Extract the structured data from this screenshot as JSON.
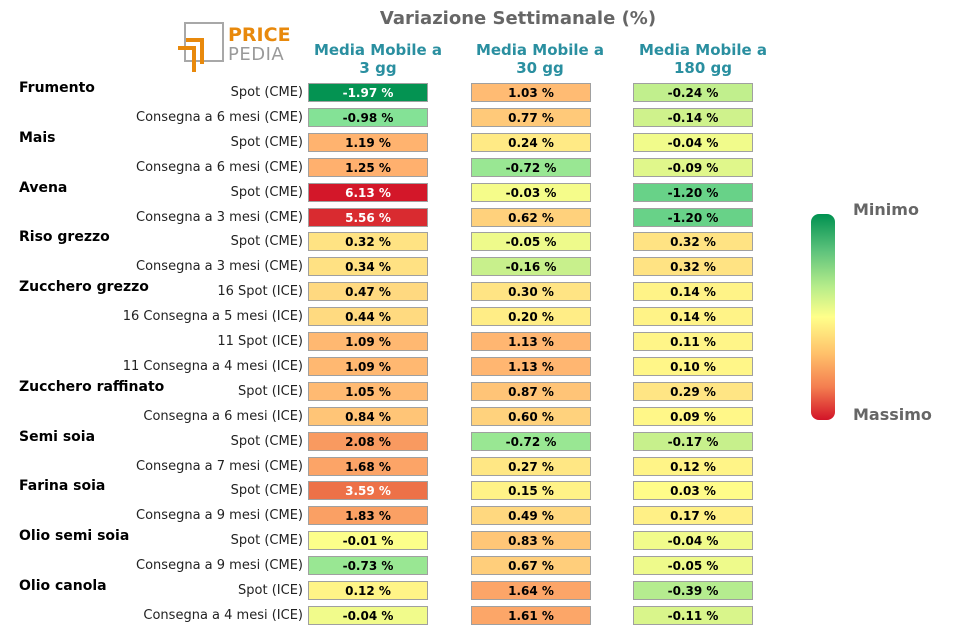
{
  "title": "Variazione Settimanale (%)",
  "logo": {
    "line1": "PRICE",
    "line2": "PEDIA"
  },
  "columns": [
    "Media Mobile a 3 gg",
    "Media Mobile a 30 gg",
    "Media Mobile a 180 gg"
  ],
  "legend": {
    "min_label": "Minimo",
    "max_label": "Massimo"
  },
  "colors": {
    "min": "#009150",
    "mid": "#ffff8a",
    "max": "#d21428",
    "header": "#2a8fa0"
  },
  "chart_data": {
    "type": "heatmap",
    "title": "Variazione Settimanale (%)",
    "columns": [
      "Media Mobile a 3 gg",
      "Media Mobile a 30 gg",
      "Media Mobile a 180 gg"
    ],
    "unit": "%",
    "groups": [
      {
        "name": "Frumento",
        "rows": [
          {
            "label": "Spot (CME)",
            "values": [
              -1.97,
              1.03,
              -0.24
            ]
          },
          {
            "label": "Consegna a 6 mesi (CME)",
            "values": [
              -0.98,
              0.77,
              -0.14
            ]
          }
        ]
      },
      {
        "name": "Mais",
        "rows": [
          {
            "label": "Spot (CME)",
            "values": [
              1.19,
              0.24,
              -0.04
            ]
          },
          {
            "label": "Consegna a 6 mesi (CME)",
            "values": [
              1.25,
              -0.72,
              -0.09
            ]
          }
        ]
      },
      {
        "name": "Avena",
        "rows": [
          {
            "label": "Spot (CME)",
            "values": [
              6.13,
              -0.03,
              -1.2
            ]
          },
          {
            "label": "Consegna a 3 mesi (CME)",
            "values": [
              5.56,
              0.62,
              -1.2
            ]
          }
        ]
      },
      {
        "name": "Riso grezzo",
        "rows": [
          {
            "label": "Spot (CME)",
            "values": [
              0.32,
              -0.05,
              0.32
            ]
          },
          {
            "label": "Consegna a 3 mesi (CME)",
            "values": [
              0.34,
              -0.16,
              0.32
            ]
          }
        ]
      },
      {
        "name": "Zucchero grezzo",
        "rows": [
          {
            "label": "16 Spot (ICE)",
            "values": [
              0.47,
              0.3,
              0.14
            ]
          },
          {
            "label": "16 Consegna a 5 mesi (ICE)",
            "values": [
              0.44,
              0.2,
              0.14
            ]
          },
          {
            "label": "11 Spot (ICE)",
            "values": [
              1.09,
              1.13,
              0.11
            ]
          },
          {
            "label": "11 Consegna a 4 mesi (ICE)",
            "values": [
              1.09,
              1.13,
              0.1
            ]
          }
        ]
      },
      {
        "name": "Zucchero raffinato",
        "rows": [
          {
            "label": "Spot (ICE)",
            "values": [
              1.05,
              0.87,
              0.29
            ]
          },
          {
            "label": "Consegna a 6 mesi (ICE)",
            "values": [
              0.84,
              0.6,
              0.09
            ]
          }
        ]
      },
      {
        "name": "Semi soia",
        "rows": [
          {
            "label": "Spot (CME)",
            "values": [
              2.08,
              -0.72,
              -0.17
            ]
          },
          {
            "label": "Consegna a 7 mesi (CME)",
            "values": [
              1.68,
              0.27,
              0.12
            ]
          }
        ]
      },
      {
        "name": "Farina soia",
        "rows": [
          {
            "label": "Spot (CME)",
            "values": [
              3.59,
              0.15,
              0.03
            ]
          },
          {
            "label": "Consegna a 9 mesi (CME)",
            "values": [
              1.83,
              0.49,
              0.17
            ]
          }
        ]
      },
      {
        "name": "Olio semi soia",
        "rows": [
          {
            "label": "Spot (CME)",
            "values": [
              -0.01,
              0.83,
              -0.04
            ]
          },
          {
            "label": "Consegna a 9 mesi (CME)",
            "values": [
              -0.73,
              0.67,
              -0.05
            ]
          }
        ]
      },
      {
        "name": "Olio canola",
        "rows": [
          {
            "label": "Spot (ICE)",
            "values": [
              0.12,
              1.64,
              -0.39
            ]
          },
          {
            "label": "Consegna a 4 mesi (ICE)",
            "values": [
              -0.04,
              1.61,
              -0.11
            ]
          }
        ]
      }
    ]
  }
}
